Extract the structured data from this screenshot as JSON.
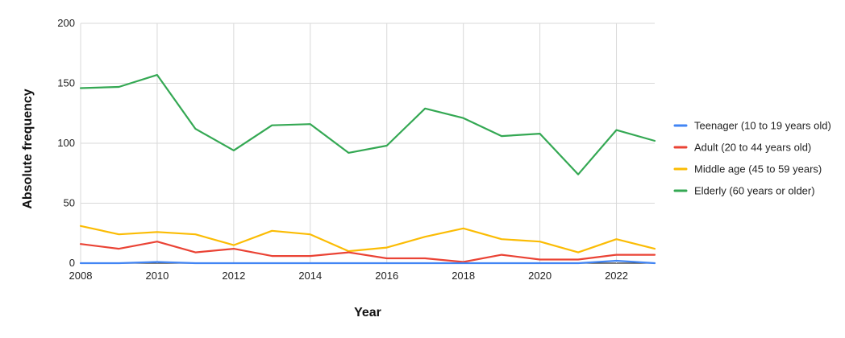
{
  "chart_data": {
    "type": "line",
    "title": "",
    "xlabel": "Year",
    "ylabel": "Absolute frequency",
    "xlim": [
      2008,
      2023
    ],
    "ylim": [
      0,
      200
    ],
    "x_ticks": [
      2008,
      2010,
      2012,
      2014,
      2016,
      2018,
      2020,
      2022
    ],
    "y_ticks": [
      0,
      50,
      100,
      150,
      200
    ],
    "grid": true,
    "legend_position": "right",
    "x": [
      2008,
      2009,
      2010,
      2011,
      2012,
      2013,
      2014,
      2015,
      2016,
      2017,
      2018,
      2019,
      2020,
      2021,
      2022,
      2023
    ],
    "series": [
      {
        "name": "Teenager (10 to 19 years old)",
        "color": "#4285F4",
        "values": [
          0,
          0,
          1,
          0,
          0,
          0,
          0,
          0,
          0,
          0,
          0,
          0,
          0,
          0,
          2,
          0
        ]
      },
      {
        "name": "Adult (20 to 44 years old)",
        "color": "#EA4335",
        "values": [
          16,
          12,
          18,
          9,
          12,
          6,
          6,
          9,
          4,
          4,
          1,
          7,
          3,
          3,
          7,
          7
        ]
      },
      {
        "name": "Middle age (45 to 59 years)",
        "color": "#FBBC04",
        "values": [
          31,
          24,
          26,
          24,
          15,
          27,
          24,
          10,
          13,
          22,
          29,
          20,
          18,
          9,
          20,
          12
        ]
      },
      {
        "name": "Elderly (60 years or older)",
        "color": "#34A853",
        "values": [
          146,
          147,
          157,
          112,
          94,
          115,
          116,
          92,
          98,
          129,
          121,
          106,
          108,
          74,
          111,
          102
        ]
      }
    ]
  }
}
